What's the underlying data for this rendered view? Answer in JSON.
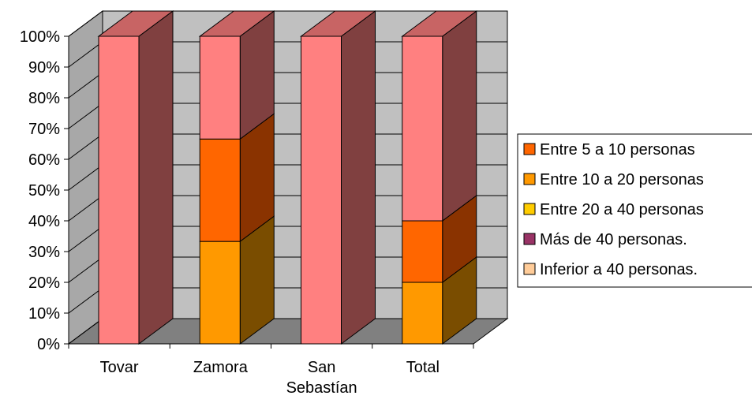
{
  "chart_data": {
    "type": "bar",
    "stacked": "percent",
    "three_d": true,
    "categories": [
      "Tovar",
      "Zamora",
      "San Sebastían",
      "Total"
    ],
    "category_lines": [
      [
        "Tovar"
      ],
      [
        "Zamora"
      ],
      [
        "San",
        "Sebastían"
      ],
      [
        "Total"
      ]
    ],
    "series": [
      {
        "name": "Entre 5 a 10 personas",
        "values": [
          0,
          0,
          0,
          0
        ]
      },
      {
        "name": "Entre 10 a 20 personas",
        "values": [
          0,
          33.3,
          0,
          20
        ]
      },
      {
        "name": "Entre 20 a 40 personas",
        "values": [
          0,
          33.3,
          0,
          20
        ]
      },
      {
        "name": "Más de 40 personas.",
        "values": [
          0,
          0,
          0,
          0
        ]
      },
      {
        "name": "Inferior a 40 personas.",
        "values": [
          100,
          33.4,
          100,
          60
        ]
      }
    ],
    "plot_order": [
      1,
      2,
      4
    ],
    "y_ticks": [
      "0%",
      "10%",
      "20%",
      "30%",
      "40%",
      "50%",
      "60%",
      "70%",
      "80%",
      "90%",
      "100%"
    ],
    "ylim": [
      0,
      100
    ],
    "grid": true,
    "legend_position": "right",
    "legend_labels": [
      "Entre 5 a 10 personas",
      "Entre 10 a 20 personas",
      "Entre 20 a 40 personas",
      "Más de 40 personas.",
      "Inferior a 40 personas."
    ],
    "colors": {
      "s1": "#ff6600",
      "s2": "#ff9900",
      "s3": "#ffcc00",
      "s4": "#993366",
      "s5": "#ffcc99",
      "s2_bar_front": "#ff6600",
      "s2_bar_side": "#8a3300",
      "s2_bar_top": "#ff6600",
      "s1_bar_front": "#ff9900",
      "s1_bar_side": "#7a4d00",
      "s4_bar_front": "#ff8080",
      "s4_bar_side": "#804040",
      "s4_bar_top": "#c86464",
      "wall_back": "#c0c0c0",
      "wall_side": "#a8a8a8",
      "floor": "#808080",
      "gridline": "#000000"
    }
  }
}
